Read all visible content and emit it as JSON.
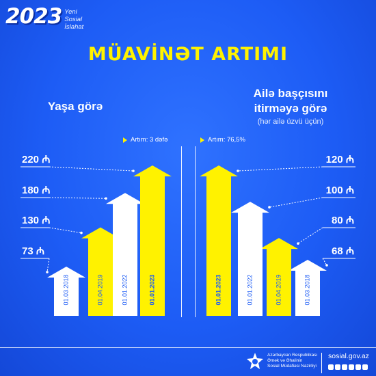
{
  "brand": {
    "year": "2023",
    "lines": [
      "Yeni",
      "Sosial",
      "İslahat"
    ]
  },
  "title": "MÜAVİNƏT ARTIMI",
  "colors": {
    "background": "#1d5cf5",
    "yellow": "#fff200",
    "white": "#ffffff"
  },
  "currency_icon": "manat-sign-icon",
  "left": {
    "title": "Yaşa görə",
    "increase": "Artım: 3 dəfə"
  },
  "right": {
    "title_lines": [
      "Ailə başçısını",
      "itirməyə görə"
    ],
    "subtitle": "(hər ailə üzvü üçün)",
    "increase": "Artım: 76,5%"
  },
  "footer": {
    "ministry_lines": [
      "Azərbaycan Respublikası",
      "Əmək və Əhalinin",
      "Sosial Müdafiəsi Nazirliyi"
    ],
    "website": "sosial.gov.az",
    "social_icons": [
      "instagram-icon",
      "facebook-icon",
      "telegram-icon",
      "twitter-icon",
      "youtube-icon",
      "linkedin-icon"
    ]
  },
  "chart_data": [
    {
      "type": "bar",
      "title": "Yaşa görə",
      "categories": [
        "01.03.2018",
        "01.04.2019",
        "01.01.2022",
        "01.01.2023"
      ],
      "values": [
        73,
        130,
        180,
        220
      ],
      "value_labels": [
        "73",
        "130",
        "180",
        "220"
      ],
      "unit": "₼",
      "colors": [
        "#ffffff",
        "#fff200",
        "#ffffff",
        "#fff200"
      ],
      "ylim": [
        0,
        240
      ],
      "annotation": "Artım: 3 dəfə"
    },
    {
      "type": "bar",
      "title": "Ailə başçısını itirməyə görə",
      "categories": [
        "01.01.2023",
        "01.01.2022",
        "01.04.2019",
        "01.03.2018"
      ],
      "values": [
        120,
        100,
        80,
        68
      ],
      "value_labels": [
        "120",
        "100",
        "80",
        "68"
      ],
      "unit": "₼",
      "colors": [
        "#fff200",
        "#ffffff",
        "#fff200",
        "#ffffff"
      ],
      "ylim": [
        0,
        130
      ],
      "annotation": "Artım: 76,5%"
    }
  ]
}
